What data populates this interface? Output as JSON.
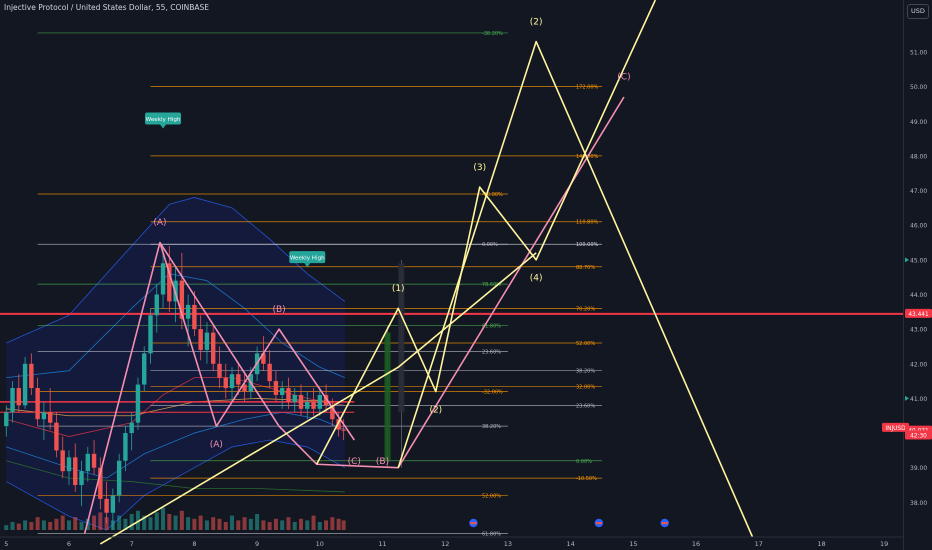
{
  "header": {
    "title": "Injective Protocol / United States Dollar, 55, COINBASE"
  },
  "currency_badge": "USD",
  "colors": {
    "background": "#131722",
    "axis_text": "#b2b5be",
    "wave_yellow": "#fff59d",
    "wave_pink": "#f48fb1",
    "red_level": "#f23645",
    "fib_orange": "#ff9800",
    "fib_green": "#4caf50",
    "fib_white": "#b2b5be",
    "candle_up": "#26a69a",
    "candle_down": "#ef5350",
    "price_badge": "#f23645"
  },
  "chart_data": {
    "type": "candlestick",
    "symbol": "INJUSD",
    "exchange": "COINBASE",
    "interval": "55",
    "x_ticks": [
      "5",
      "6",
      "7",
      "8",
      "9",
      "10",
      "11",
      "12",
      "13",
      "14",
      "15",
      "16",
      "17",
      "18",
      "19"
    ],
    "xlim": [
      4.9,
      19.3
    ],
    "y_ticks": [
      "38.00",
      "39.00",
      "40.00",
      "41.00",
      "42.00",
      "43.00",
      "44.00",
      "45.00",
      "46.00",
      "47.00",
      "48.00",
      "49.00",
      "50.00",
      "51.00"
    ],
    "ylim": [
      37.0,
      52.5
    ],
    "price_labels": [
      {
        "text": "43.441",
        "y": 43.441,
        "color": "#f23645"
      },
      {
        "text": "INJUSD",
        "y": 40.15,
        "color": "#f23645"
      },
      {
        "text": "40.071",
        "y": 40.071,
        "color": "#f23645"
      },
      {
        "text": "42:30",
        "y": 39.93,
        "color": "#f23645"
      }
    ],
    "candles": [
      [
        5.0,
        40.2,
        40.8,
        39.9,
        40.6
      ],
      [
        5.1,
        40.6,
        41.5,
        40.3,
        41.3
      ],
      [
        5.2,
        41.3,
        41.7,
        40.6,
        40.8
      ],
      [
        5.3,
        40.8,
        42.2,
        40.7,
        42.0
      ],
      [
        5.4,
        42.0,
        42.3,
        41.1,
        41.3
      ],
      [
        5.5,
        41.3,
        41.6,
        40.2,
        40.4
      ],
      [
        5.6,
        40.4,
        40.9,
        39.8,
        40.6
      ],
      [
        5.7,
        40.6,
        41.3,
        40.1,
        40.3
      ],
      [
        5.8,
        40.3,
        40.6,
        39.3,
        39.5
      ],
      [
        5.9,
        39.5,
        39.9,
        38.7,
        38.9
      ],
      [
        6.0,
        38.9,
        39.5,
        38.5,
        39.3
      ],
      [
        6.1,
        39.3,
        39.7,
        38.3,
        38.5
      ],
      [
        6.2,
        38.5,
        39.2,
        37.9,
        38.9
      ],
      [
        6.3,
        38.9,
        39.6,
        38.6,
        39.4
      ],
      [
        6.4,
        39.4,
        39.8,
        38.8,
        39.0
      ],
      [
        6.5,
        39.0,
        39.3,
        37.8,
        38.1
      ],
      [
        6.6,
        38.1,
        38.6,
        37.4,
        37.7
      ],
      [
        6.7,
        37.7,
        38.4,
        37.2,
        38.2
      ],
      [
        6.8,
        38.2,
        39.4,
        38.0,
        39.2
      ],
      [
        6.9,
        39.2,
        40.2,
        38.9,
        40.0
      ],
      [
        7.0,
        40.0,
        40.6,
        39.5,
        40.3
      ],
      [
        7.1,
        40.3,
        41.6,
        40.1,
        41.4
      ],
      [
        7.2,
        41.4,
        42.5,
        41.2,
        42.3
      ],
      [
        7.3,
        42.3,
        43.6,
        42.0,
        43.4
      ],
      [
        7.4,
        43.4,
        44.3,
        42.9,
        44.0
      ],
      [
        7.5,
        44.0,
        45.3,
        43.6,
        44.9
      ],
      [
        7.6,
        44.9,
        45.4,
        43.5,
        43.8
      ],
      [
        7.7,
        43.8,
        44.8,
        43.2,
        44.4
      ],
      [
        7.8,
        44.4,
        45.2,
        43.0,
        43.3
      ],
      [
        7.9,
        43.3,
        44.0,
        42.5,
        43.7
      ],
      [
        8.0,
        43.7,
        44.1,
        42.8,
        43.0
      ],
      [
        8.1,
        43.0,
        43.4,
        42.1,
        42.4
      ],
      [
        8.2,
        42.4,
        43.2,
        42.0,
        42.9
      ],
      [
        8.3,
        42.9,
        43.1,
        41.8,
        42.0
      ],
      [
        8.4,
        42.0,
        42.5,
        41.3,
        41.6
      ],
      [
        8.5,
        41.6,
        42.0,
        41.0,
        41.3
      ],
      [
        8.6,
        41.3,
        41.9,
        40.9,
        41.7
      ],
      [
        8.7,
        41.7,
        42.0,
        41.1,
        41.4
      ],
      [
        8.8,
        41.4,
        41.7,
        40.9,
        41.2
      ],
      [
        8.9,
        41.2,
        41.9,
        41.0,
        41.7
      ],
      [
        9.0,
        41.7,
        42.5,
        41.5,
        42.3
      ],
      [
        9.1,
        42.3,
        42.8,
        41.8,
        42.0
      ],
      [
        9.2,
        42.0,
        42.4,
        41.3,
        41.5
      ],
      [
        9.3,
        41.5,
        41.8,
        40.9,
        41.1
      ],
      [
        9.4,
        41.1,
        41.5,
        40.7,
        41.3
      ],
      [
        9.5,
        41.3,
        41.6,
        40.7,
        40.9
      ],
      [
        9.6,
        40.9,
        41.3,
        40.6,
        41.1
      ],
      [
        9.7,
        41.1,
        41.4,
        40.5,
        40.7
      ],
      [
        9.8,
        40.7,
        41.2,
        40.4,
        40.9
      ],
      [
        9.9,
        40.9,
        41.3,
        40.5,
        40.7
      ],
      [
        10.0,
        40.7,
        41.3,
        40.5,
        41.1
      ],
      [
        10.1,
        41.1,
        41.4,
        40.6,
        40.8
      ],
      [
        10.2,
        40.8,
        41.0,
        40.2,
        40.4
      ],
      [
        10.3,
        40.4,
        40.6,
        39.9,
        40.1
      ],
      [
        10.38,
        40.1,
        40.4,
        39.8,
        40.07
      ]
    ],
    "bands": [
      {
        "name": "",
        "color": "#2962ff",
        "values": [
          [
            5.0,
            42.6
          ],
          [
            6.0,
            43.4
          ],
          [
            7.0,
            45.4
          ],
          [
            7.6,
            46.6
          ],
          [
            8.0,
            46.8
          ],
          [
            8.6,
            46.5
          ],
          [
            9.2,
            45.6
          ],
          [
            9.8,
            44.6
          ],
          [
            10.4,
            43.8
          ]
        ]
      },
      {
        "name": "",
        "color": "#2962ff",
        "values": [
          [
            5.0,
            38.6
          ],
          [
            6.0,
            37.6
          ],
          [
            6.6,
            37.2
          ],
          [
            7.2,
            38.2
          ],
          [
            8.0,
            39.0
          ],
          [
            8.6,
            39.6
          ],
          [
            9.2,
            39.8
          ],
          [
            9.8,
            39.6
          ],
          [
            10.4,
            39.0
          ]
        ]
      },
      {
        "name": "",
        "color": "#1e88e5",
        "values": [
          [
            5.0,
            41.6
          ],
          [
            6.0,
            41.8
          ],
          [
            7.0,
            43.6
          ],
          [
            7.6,
            44.6
          ],
          [
            8.2,
            44.4
          ],
          [
            8.8,
            43.6
          ],
          [
            9.4,
            42.6
          ],
          [
            10.0,
            41.9
          ],
          [
            10.4,
            41.6
          ]
        ]
      },
      {
        "name": "",
        "color": "#1e88e5",
        "values": [
          [
            5.0,
            39.6
          ],
          [
            6.0,
            39.0
          ],
          [
            6.6,
            38.7
          ],
          [
            7.2,
            39.4
          ],
          [
            8.0,
            40.0
          ],
          [
            8.8,
            40.4
          ],
          [
            9.4,
            40.6
          ],
          [
            10.0,
            40.4
          ],
          [
            10.4,
            40.1
          ]
        ]
      },
      {
        "name": "",
        "color": "#2e7d32",
        "values": [
          [
            5.0,
            39.2
          ],
          [
            6.0,
            38.7
          ],
          [
            7.0,
            38.6
          ],
          [
            8.0,
            38.4
          ],
          [
            9.0,
            38.4
          ],
          [
            10.4,
            38.3
          ]
        ]
      },
      {
        "name": "",
        "color": "#f23645",
        "values": [
          [
            5.0,
            40.4
          ],
          [
            6.0,
            39.9
          ],
          [
            7.0,
            40.3
          ],
          [
            7.5,
            41.1
          ],
          [
            8.0,
            41.6
          ],
          [
            8.6,
            41.6
          ],
          [
            9.2,
            41.3
          ],
          [
            9.8,
            41.0
          ],
          [
            10.4,
            40.8
          ]
        ]
      },
      {
        "name": "",
        "color": "#ffb74d",
        "values": [
          [
            5.0,
            40.7
          ],
          [
            6.0,
            40.5
          ],
          [
            7.0,
            40.5
          ],
          [
            8.0,
            40.9
          ],
          [
            9.0,
            41.0
          ],
          [
            10.4,
            40.9
          ]
        ]
      }
    ],
    "levels": [
      {
        "label": "",
        "y": 43.441,
        "color": "#f23645",
        "x_from": 4.9,
        "x_to": 19.3,
        "width": 2
      },
      {
        "label": "",
        "y": 40.9,
        "color": "#f23645",
        "x_from": 4.9,
        "x_to": 10.55,
        "width": 1.5
      },
      {
        "label": "",
        "y": 40.6,
        "color": "#f23645",
        "x_from": 4.9,
        "x_to": 10.55,
        "width": 1
      }
    ],
    "fib_levels": [
      {
        "label": "-38.20%",
        "y": 51.55,
        "color": "#4caf50",
        "x_from": 5.5,
        "x_to": 13.0
      },
      {
        "label": "172.00%",
        "y": 50.0,
        "color": "#ff9800",
        "x_from": 7.3,
        "x_to": 14.5
      },
      {
        "label": "140.00%",
        "y": 48.0,
        "color": "#ff9800",
        "x_from": 7.3,
        "x_to": 14.5
      },
      {
        "label": "-10.00%",
        "y": 46.9,
        "color": "#ff9800",
        "x_from": 5.5,
        "x_to": 13.0
      },
      {
        "label": "110.80%",
        "y": 46.1,
        "color": "#ff9800",
        "x_from": 7.3,
        "x_to": 14.5
      },
      {
        "label": "0.00%",
        "y": 45.45,
        "color": "#b2b5be",
        "x_from": 5.5,
        "x_to": 13.0
      },
      {
        "label": "100.00%",
        "y": 45.45,
        "color": "#d1d4dc",
        "x_from": 7.3,
        "x_to": 14.5
      },
      {
        "label": "88.70%",
        "y": 44.8,
        "color": "#ff9800",
        "x_from": 7.3,
        "x_to": 14.5
      },
      {
        "label": "78.60%",
        "y": 44.3,
        "color": "#4caf50",
        "x_from": 5.5,
        "x_to": 13.0
      },
      {
        "label": "70.20%",
        "y": 43.6,
        "color": "#ff9800",
        "x_from": 7.3,
        "x_to": 14.5
      },
      {
        "label": "61.80%",
        "y": 43.1,
        "color": "#4caf50",
        "x_from": 5.5,
        "x_to": 13.0
      },
      {
        "label": "52.00%",
        "y": 42.6,
        "color": "#ff9800",
        "x_from": 7.3,
        "x_to": 14.5
      },
      {
        "label": "23.60%",
        "y": 42.35,
        "color": "#b2b5be",
        "x_from": 5.5,
        "x_to": 13.0
      },
      {
        "label": "38.20%",
        "y": 41.8,
        "color": "#b2b5be",
        "x_from": 7.3,
        "x_to": 14.5
      },
      {
        "label": "32.00%",
        "y": 41.35,
        "color": "#ff9800",
        "x_from": 7.3,
        "x_to": 14.5
      },
      {
        "label": "-32.00%",
        "y": 41.2,
        "color": "#ff9800",
        "x_from": 5.5,
        "x_to": 13.0
      },
      {
        "label": "23.60%",
        "y": 40.8,
        "color": "#b2b5be",
        "x_from": 7.3,
        "x_to": 14.5
      },
      {
        "label": "38.20%",
        "y": 40.2,
        "color": "#b2b5be",
        "x_from": 5.5,
        "x_to": 13.0
      },
      {
        "label": "0.00%",
        "y": 39.2,
        "color": "#4caf50",
        "x_from": 7.3,
        "x_to": 14.5
      },
      {
        "label": "-10.50%",
        "y": 38.7,
        "color": "#ff9800",
        "x_from": 7.3,
        "x_to": 14.5
      },
      {
        "label": "52.00%",
        "y": 38.2,
        "color": "#ff9800",
        "x_from": 5.5,
        "x_to": 13.0
      },
      {
        "label": "61.80%",
        "y": 37.1,
        "color": "#b2b5be",
        "x_from": 5.5,
        "x_to": 13.0
      }
    ],
    "waves": [
      {
        "name": "",
        "color": "#f48fb1",
        "points": [
          [
            6.25,
            37.1
          ],
          [
            7.45,
            45.5
          ],
          [
            8.35,
            40.2
          ],
          [
            9.35,
            43.0
          ],
          [
            10.55,
            39.8
          ]
        ]
      },
      {
        "name": "",
        "color": "#f48fb1",
        "points": [
          [
            7.45,
            45.5
          ],
          [
            9.35,
            40.2
          ],
          [
            9.95,
            39.1
          ],
          [
            11.25,
            39.0
          ],
          [
            14.85,
            49.7
          ]
        ]
      },
      {
        "name": "",
        "color": "#fff59d",
        "points": [
          [
            9.95,
            39.1
          ],
          [
            11.25,
            43.6
          ],
          [
            11.85,
            41.2
          ],
          [
            12.55,
            47.1
          ],
          [
            13.45,
            45.0
          ],
          [
            15.35,
            52.5
          ]
        ]
      },
      {
        "name": "",
        "color": "#fff59d",
        "points": [
          [
            11.25,
            39.0
          ],
          [
            13.45,
            51.3
          ],
          [
            16.9,
            37.0
          ]
        ]
      },
      {
        "name": "",
        "color": "#fff59d",
        "points": [
          [
            6.5,
            36.8
          ],
          [
            11.25,
            41.9
          ],
          [
            13.45,
            45.2
          ]
        ]
      }
    ],
    "wave_labels": [
      {
        "text": "(A)",
        "x": 7.45,
        "y": 46.0,
        "color": "#f48fb1"
      },
      {
        "text": "(A)",
        "x": 8.35,
        "y": 39.6,
        "color": "#f48fb1"
      },
      {
        "text": "(B)",
        "x": 9.35,
        "y": 43.5,
        "color": "#f48fb1"
      },
      {
        "text": "(C)",
        "x": 10.55,
        "y": 39.1,
        "color": "#f48fb1"
      },
      {
        "text": "(B)",
        "x": 11.0,
        "y": 39.1,
        "color": "#f48fb1"
      },
      {
        "text": "(C)",
        "x": 14.85,
        "y": 50.2,
        "color": "#f48fb1"
      },
      {
        "text": "(1)",
        "x": 11.25,
        "y": 44.1,
        "color": "#fff59d"
      },
      {
        "text": "(2)",
        "x": 11.85,
        "y": 40.6,
        "color": "#fff59d"
      },
      {
        "text": "(3)",
        "x": 12.55,
        "y": 47.6,
        "color": "#fff59d"
      },
      {
        "text": "(4)",
        "x": 13.45,
        "y": 44.4,
        "color": "#fff59d"
      },
      {
        "text": "(2)",
        "x": 13.45,
        "y": 51.8,
        "color": "#fff59d"
      }
    ],
    "annotations": [
      {
        "text": "Weekly High",
        "x": 7.5,
        "y": 49.05,
        "color": "#26a69a"
      },
      {
        "text": "Weekly High",
        "x": 9.8,
        "y": 45.05,
        "color": "#26a69a"
      }
    ],
    "projection_bars": [
      {
        "x": 11.08,
        "open": 39.2,
        "close": 42.9,
        "high": 43.1,
        "low": 39.0,
        "color": "#1b5e20"
      },
      {
        "x": 11.3,
        "open": 44.9,
        "close": 40.6,
        "high": 45.0,
        "low": 39.0,
        "color": "#2a2e39"
      }
    ],
    "event_markers": [
      12.45,
      14.45,
      15.5
    ],
    "volume": [
      3,
      5,
      4,
      6,
      5,
      8,
      6,
      5,
      7,
      9,
      6,
      8,
      5,
      7,
      9,
      11,
      8,
      6,
      9,
      7,
      10,
      12,
      9,
      8,
      11,
      14,
      10,
      9,
      12,
      8,
      7,
      9,
      6,
      8,
      7,
      5,
      9,
      6,
      8,
      7,
      10,
      6,
      5,
      7,
      6,
      8,
      5,
      7,
      6,
      9,
      5,
      6,
      8,
      7,
      6
    ]
  }
}
